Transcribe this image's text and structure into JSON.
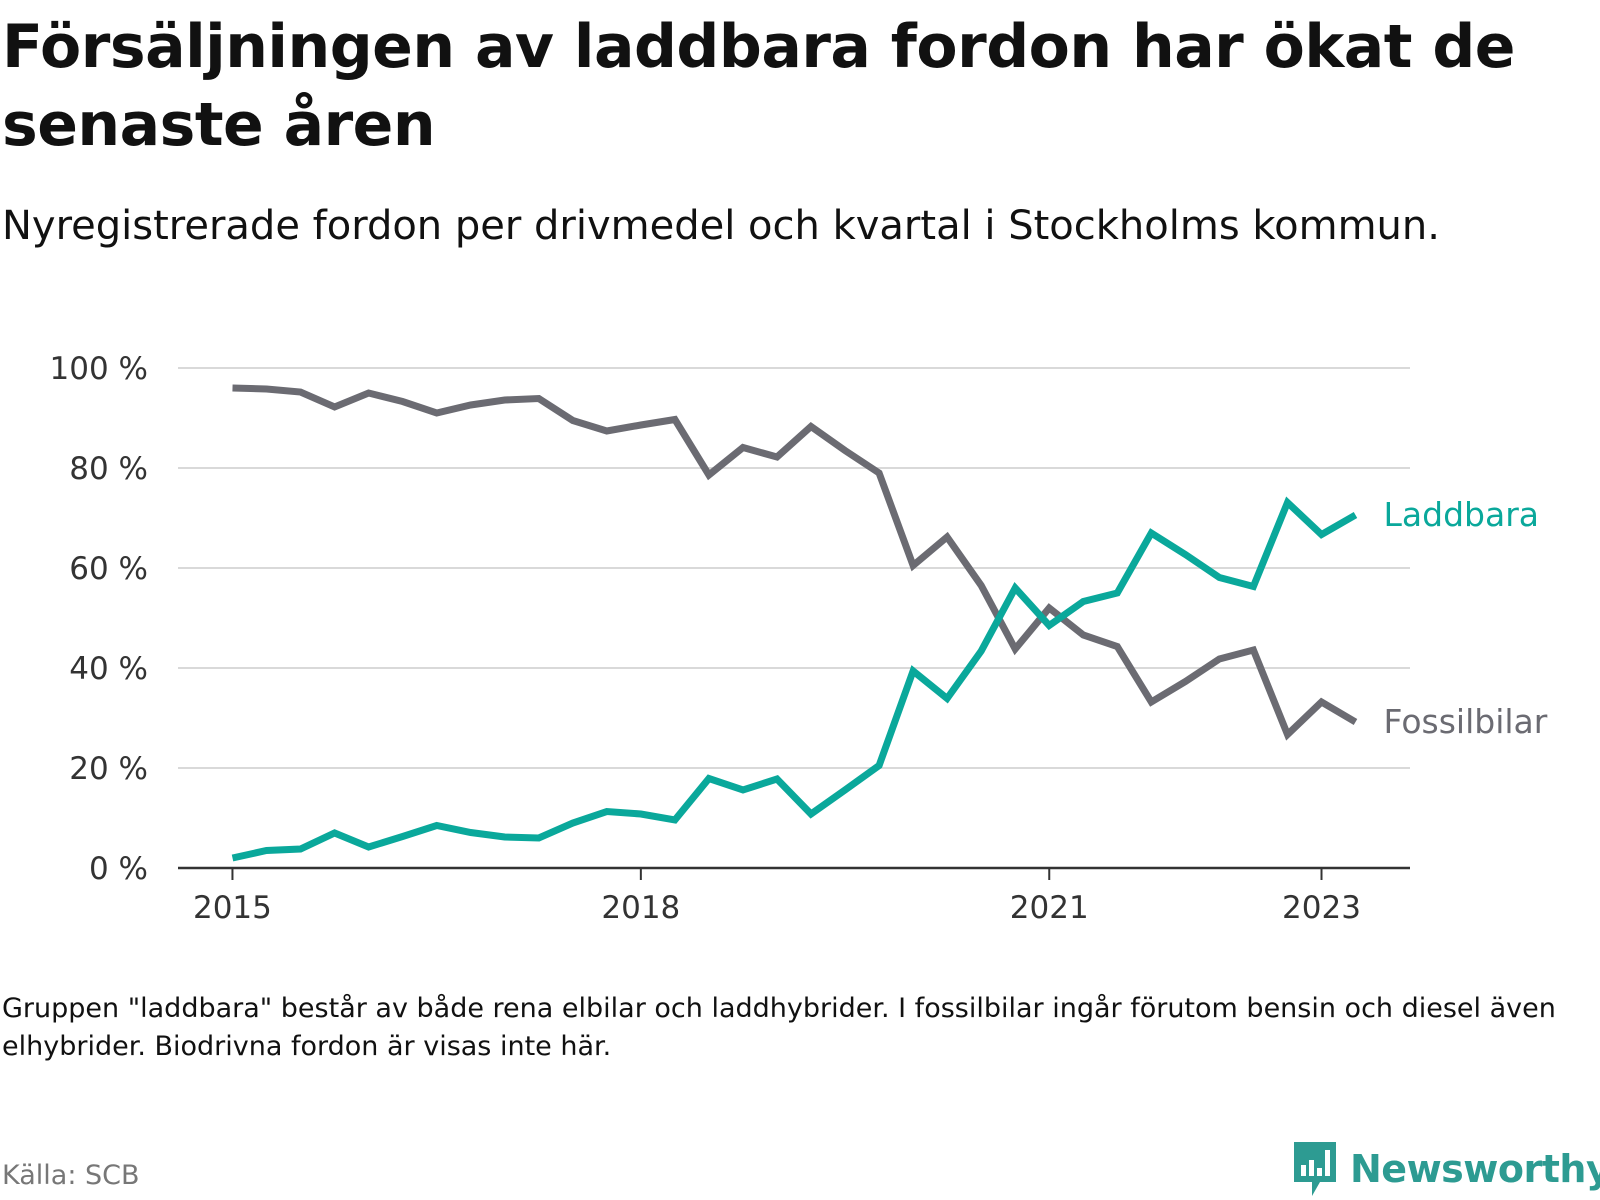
{
  "title": "Försäljningen av laddbara fordon har ökat de senaste åren",
  "subtitle": "Nyregistrerade fordon per drivmedel och kvartal i Stockholms kommun.",
  "note": "Gruppen \"laddbara\" består av både rena elbilar och laddhybrider. I fossilbilar ingår förutom bensin och diesel även elhybrider. Biodrivna fordon är visas inte här.",
  "source": "Källa: SCB",
  "logo": {
    "text": "Newsworthy",
    "color": "#2d9b92"
  },
  "chart_data": {
    "type": "line",
    "title": "Försäljningen av laddbara fordon har ökat de senaste åren",
    "xlabel": "",
    "ylabel": "",
    "ylim": [
      0,
      100
    ],
    "xlim": [
      2014.6,
      2023.65
    ],
    "yticks": [
      0,
      20,
      40,
      60,
      80,
      100
    ],
    "ytick_labels": [
      "0 %",
      "20 %",
      "40 %",
      "60 %",
      "80 %",
      "100 %"
    ],
    "xticks": [
      2015,
      2018,
      2021,
      2023
    ],
    "xtick_labels": [
      "2015",
      "2018",
      "2021",
      "2023"
    ],
    "grid": true,
    "x": [
      2015.0,
      2015.25,
      2015.5,
      2015.75,
      2016.0,
      2016.25,
      2016.5,
      2016.75,
      2017.0,
      2017.25,
      2017.5,
      2017.75,
      2018.0,
      2018.25,
      2018.5,
      2018.75,
      2019.0,
      2019.25,
      2019.5,
      2019.75,
      2020.0,
      2020.25,
      2020.5,
      2020.75,
      2021.0,
      2021.25,
      2021.5,
      2021.75,
      2022.0,
      2022.25,
      2022.5,
      2022.75,
      2023.0,
      2023.25
    ],
    "series": [
      {
        "name": "Fossilbilar",
        "color": "#6b6b72",
        "values": [
          96,
          95.8,
          95.2,
          92.2,
          95,
          93.3,
          91,
          92.6,
          93.6,
          93.9,
          89.5,
          87.4,
          88.6,
          89.7,
          78.6,
          84.1,
          82.2,
          88.3,
          83.5,
          79,
          60.5,
          66.2,
          56.5,
          43.8,
          52,
          46.6,
          44.3,
          33.2,
          37.3,
          41.8,
          43.6,
          26.7,
          33.2,
          29.2
        ]
      },
      {
        "name": "Laddbara",
        "color": "#0aa89b",
        "values": [
          2,
          3.5,
          3.8,
          7,
          4.2,
          6.3,
          8.5,
          7.1,
          6.2,
          6,
          9,
          11.3,
          10.8,
          9.6,
          17.9,
          15.6,
          17.8,
          10.8,
          15.6,
          20.5,
          39.4,
          33.9,
          43.4,
          56,
          48.5,
          53.3,
          55,
          67,
          62.7,
          58.1,
          56.3,
          73.1,
          66.7,
          70.6
        ]
      }
    ]
  }
}
